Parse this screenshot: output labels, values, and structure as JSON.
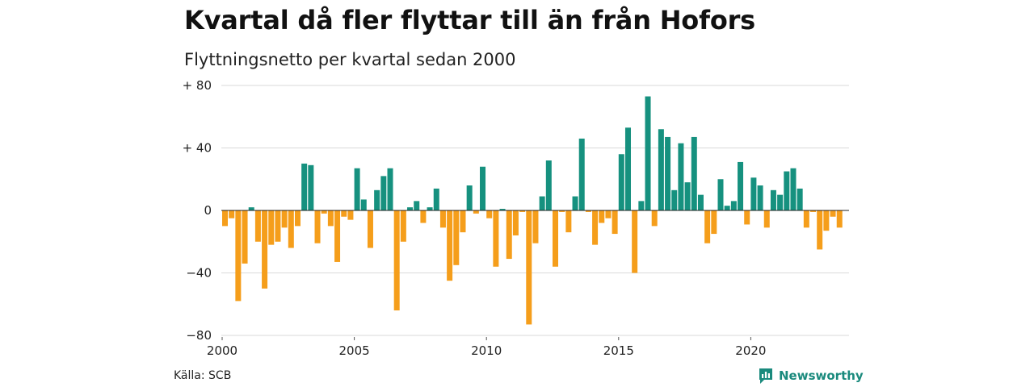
{
  "title": "Kvartal då fler flyttar till än från Hofors",
  "subtitle": "Flyttningsnetto per kvartal sedan 2000",
  "source": "Källa: SCB",
  "brand": {
    "name": "Newsworthy",
    "icon": "newsworthy-logo-icon",
    "color": "#1a8a7d"
  },
  "colors": {
    "positive": "#16917f",
    "negative": "#f59e1b",
    "grid": "#d9d9d9",
    "zero_line": "#222222"
  },
  "chart_data": {
    "type": "bar",
    "title": "Kvartal då fler flyttar till än från Hofors",
    "subtitle": "Flyttningsnetto per kvartal sedan 2000",
    "xlabel": "",
    "ylabel": "",
    "x_tick_labels": [
      "2000",
      "2005",
      "2010",
      "2015",
      "2020"
    ],
    "y_ticks": [
      80,
      40,
      0,
      -40,
      -80
    ],
    "y_tick_labels": [
      "+ 80",
      "+ 40",
      "0",
      "−40",
      "−80"
    ],
    "ylim": [
      -80,
      80
    ],
    "grid": true,
    "start_year": 2000,
    "values": [
      -10,
      -5,
      -58,
      -34,
      2,
      -20,
      -50,
      -22,
      -20,
      -11,
      -24,
      -10,
      30,
      29,
      -21,
      -2,
      -10,
      -33,
      -4,
      -6,
      27,
      7,
      -24,
      13,
      22,
      27,
      -64,
      -20,
      2,
      6,
      -8,
      2,
      14,
      -11,
      -45,
      -35,
      -14,
      16,
      -2,
      28,
      -5,
      -36,
      1,
      -31,
      -16,
      -1,
      -73,
      -21,
      9,
      32,
      -36,
      -1,
      -14,
      9,
      46,
      -1,
      -22,
      -8,
      -5,
      -15,
      36,
      53,
      -40,
      6,
      73,
      -10,
      52,
      47,
      13,
      43,
      18,
      47,
      10,
      -21,
      -15,
      20,
      3,
      6,
      31,
      -9,
      21,
      16,
      -11,
      13,
      10,
      25,
      27,
      14,
      -11,
      -1,
      -25,
      -13,
      -4,
      -11
    ]
  }
}
